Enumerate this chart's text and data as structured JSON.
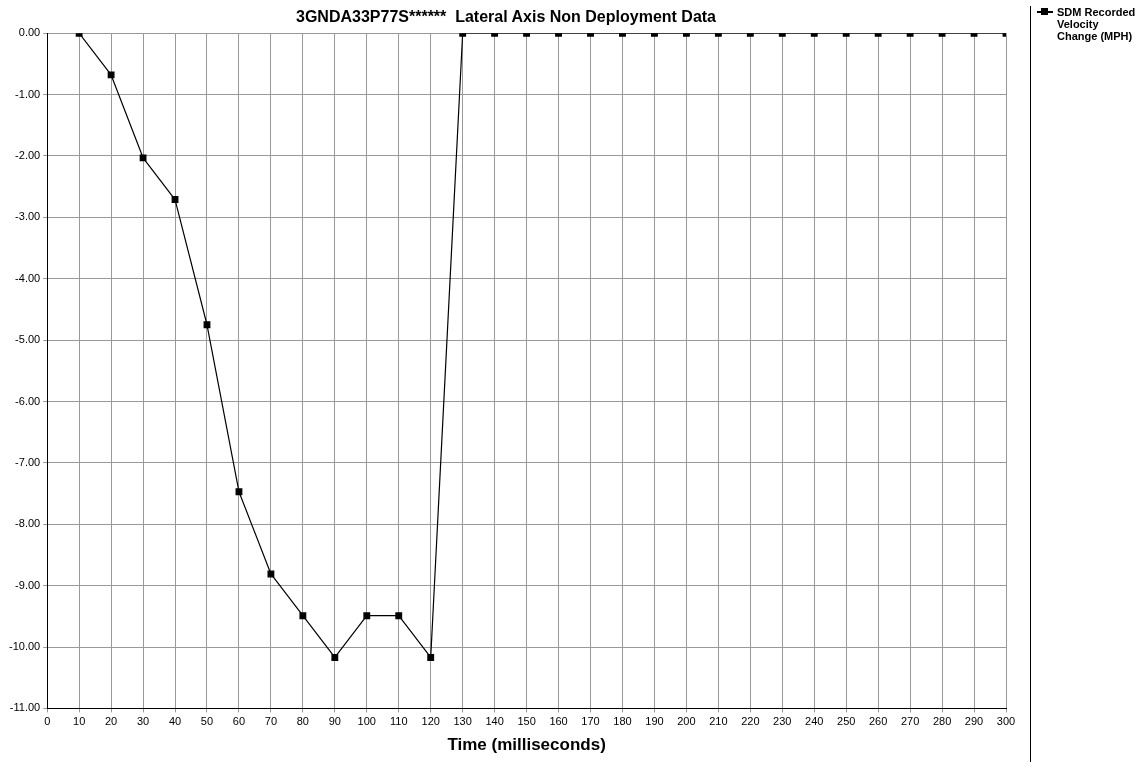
{
  "chart_data": {
    "type": "line",
    "title": "3GNDA33P77S******  Lateral Axis Non Deployment Data",
    "xlabel": "Time (milliseconds)",
    "x": [
      10,
      20,
      30,
      40,
      50,
      60,
      70,
      80,
      90,
      100,
      110,
      120,
      130,
      140,
      150,
      160,
      170,
      180,
      190,
      200,
      210,
      220,
      230,
      240,
      250,
      260,
      270,
      280,
      290,
      300
    ],
    "series": [
      {
        "name": "SDM Recorded Velocity Change (MPH)",
        "color": "#000000",
        "values": [
          0,
          -0.68,
          -2.03,
          -2.71,
          -4.75,
          -7.47,
          -8.81,
          -9.49,
          -10.17,
          -9.49,
          -9.49,
          -10.17,
          0,
          0,
          0,
          0,
          0,
          0,
          0,
          0,
          0,
          0,
          0,
          0,
          0,
          0,
          0,
          0,
          0,
          0
        ]
      }
    ],
    "xlim": [
      0,
      300
    ],
    "xticks": [
      0,
      10,
      20,
      30,
      40,
      50,
      60,
      70,
      80,
      90,
      100,
      110,
      120,
      130,
      140,
      150,
      160,
      170,
      180,
      190,
      200,
      210,
      220,
      230,
      240,
      250,
      260,
      270,
      280,
      290,
      300
    ],
    "ylim": [
      -11,
      0
    ],
    "yticks": [
      {
        "value": 0,
        "label": "0.00"
      },
      {
        "value": -1,
        "label": "-1.00"
      },
      {
        "value": -2,
        "label": "-2.00"
      },
      {
        "value": -3,
        "label": "-3.00"
      },
      {
        "value": -4,
        "label": "-4.00"
      },
      {
        "value": -5,
        "label": "-5.00"
      },
      {
        "value": -6,
        "label": "-6.00"
      },
      {
        "value": -7,
        "label": "-7.00"
      },
      {
        "value": -8,
        "label": "-8.00"
      },
      {
        "value": -9,
        "label": "-9.00"
      },
      {
        "value": -10,
        "label": "-10.00"
      },
      {
        "value": -11,
        "label": "-11.00"
      }
    ],
    "grid": true,
    "legend": "top right",
    "marker": "square",
    "line_style": "solid"
  }
}
